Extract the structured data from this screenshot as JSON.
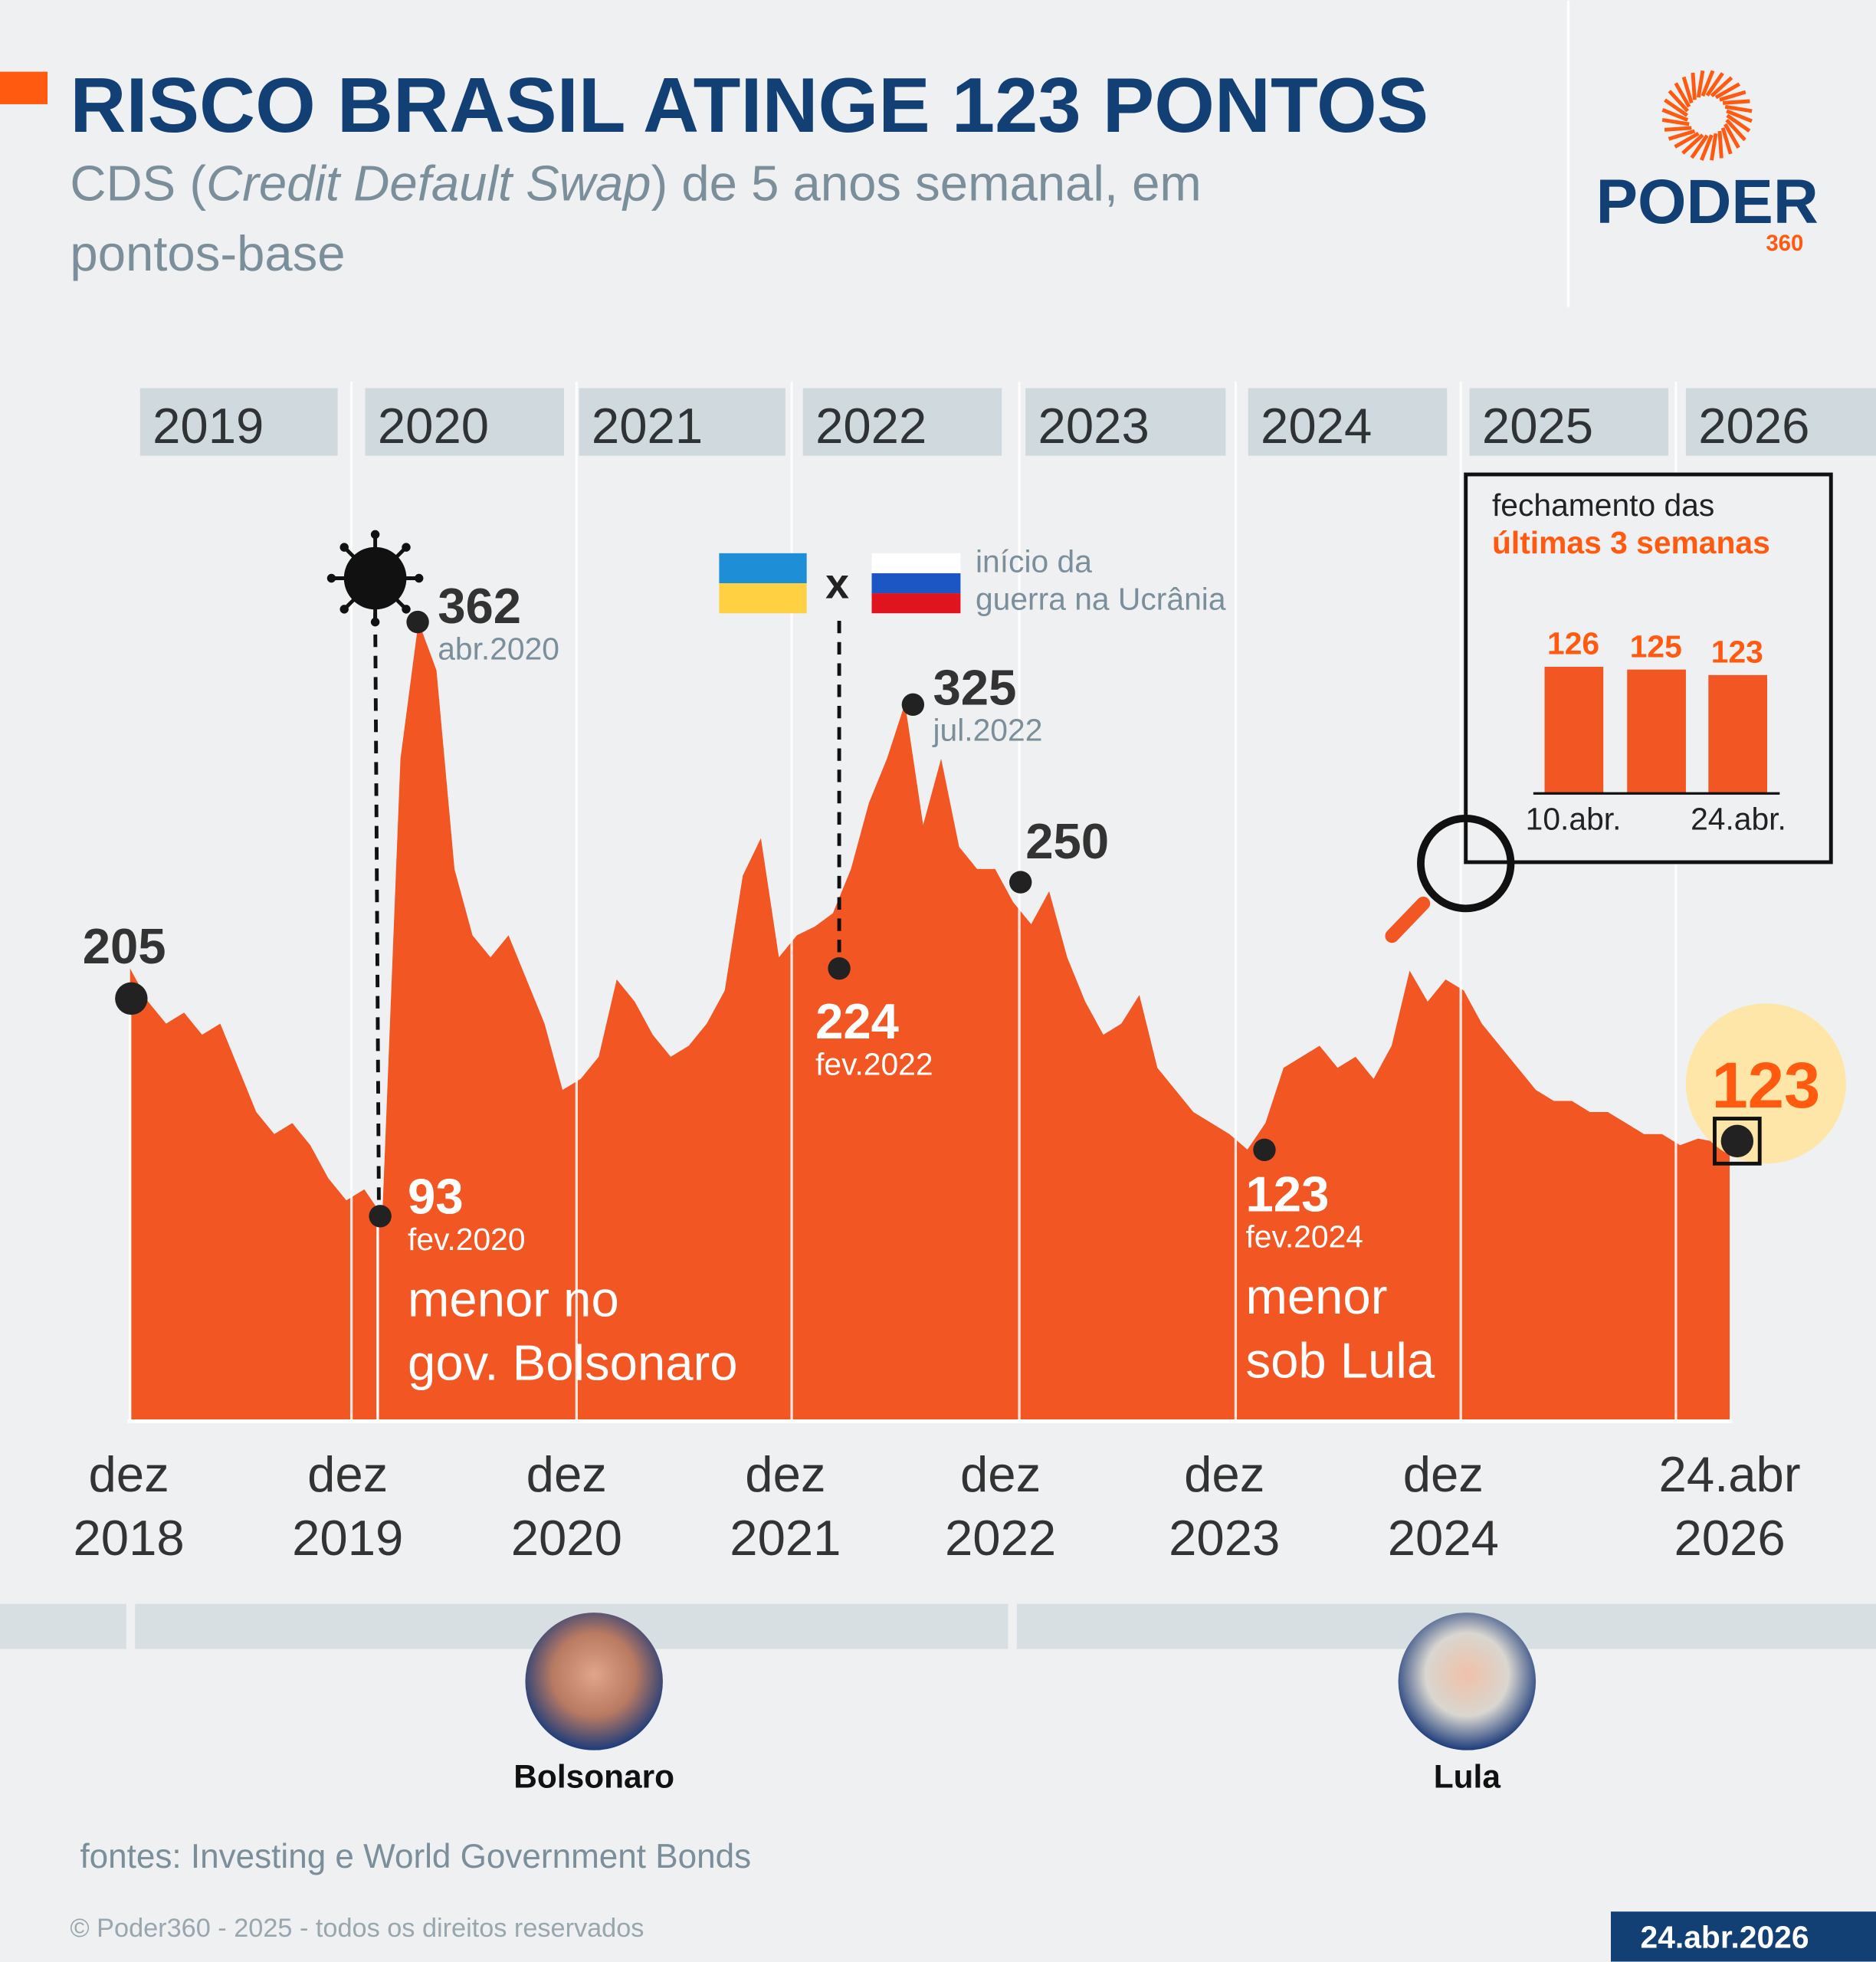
{
  "header": {
    "title": "RISCO BRASIL ATINGE 123 PONTOS",
    "subtitle_prefix": "CDS (",
    "subtitle_italic": "Credit Default Swap",
    "subtitle_suffix": ") de 5 anos semanal, em",
    "subtitle_line2": "pontos-base"
  },
  "logo": {
    "name": "PODER",
    "suffix": "360"
  },
  "colors": {
    "accent": "#f15623",
    "brand_blue": "#123f74",
    "band": "#d0d9de",
    "background": "#eef0f2",
    "highlight": "#fde6a8"
  },
  "chart_data": {
    "type": "area",
    "title": "RISCO BRASIL ATINGE 123 PONTOS",
    "ylabel": "",
    "year_bands": [
      "2019",
      "2020",
      "2021",
      "2022",
      "2023",
      "2024",
      "2025",
      "2026"
    ],
    "x_ticks": [
      {
        "line1": "dez",
        "line2": "2018"
      },
      {
        "line1": "dez",
        "line2": "2019"
      },
      {
        "line1": "dez",
        "line2": "2020"
      },
      {
        "line1": "dez",
        "line2": "2021"
      },
      {
        "line1": "dez",
        "line2": "2022"
      },
      {
        "line1": "dez",
        "line2": "2023"
      },
      {
        "line1": "dez",
        "line2": "2024"
      },
      {
        "line1": "24.abr",
        "line2": "2026"
      }
    ],
    "ylim": [
      0,
      380
    ],
    "series": [
      {
        "x": [
          "2018-12",
          "2019-01",
          "2019-02",
          "2019-03",
          "2019-04",
          "2019-05",
          "2019-06",
          "2019-07",
          "2019-08",
          "2019-09",
          "2019-10",
          "2019-11",
          "2019-12",
          "2020-01",
          "2020-02",
          "2020-03",
          "2020-04",
          "2020-05",
          "2020-06",
          "2020-07",
          "2020-08",
          "2020-09",
          "2020-10",
          "2020-11",
          "2020-12",
          "2021-01",
          "2021-02",
          "2021-03",
          "2021-04",
          "2021-05",
          "2021-06",
          "2021-07",
          "2021-08",
          "2021-09",
          "2021-10",
          "2021-11",
          "2021-12",
          "2022-01",
          "2022-02",
          "2022-03",
          "2022-04",
          "2022-05",
          "2022-06",
          "2022-07",
          "2022-08",
          "2022-09",
          "2022-10",
          "2022-11",
          "2022-12",
          "2023-01",
          "2023-02",
          "2023-03",
          "2023-04",
          "2023-05",
          "2023-06",
          "2023-07",
          "2023-08",
          "2023-09",
          "2023-10",
          "2023-11",
          "2023-12",
          "2024-01",
          "2024-02",
          "2024-03",
          "2024-04",
          "2024-05",
          "2024-06",
          "2024-07",
          "2024-08",
          "2024-09",
          "2024-10",
          "2024-11",
          "2024-12",
          "2025-01",
          "2025-02",
          "2025-03",
          "2025-04",
          "2025-05",
          "2025-06",
          "2025-07",
          "2025-08",
          "2025-09",
          "2025-10",
          "2025-11",
          "2025-12",
          "2026-01",
          "2026-02",
          "2026-03",
          "2026-04-10",
          "2026-04-17",
          "2026-04-24"
        ],
        "values": [
          205,
          190,
          180,
          185,
          175,
          180,
          160,
          140,
          130,
          135,
          125,
          110,
          100,
          105,
          93,
          300,
          362,
          340,
          250,
          220,
          210,
          220,
          200,
          180,
          150,
          155,
          165,
          200,
          190,
          175,
          165,
          170,
          180,
          195,
          247,
          264,
          210,
          220,
          224,
          230,
          250,
          280,
          300,
          325,
          270,
          300,
          260,
          250,
          250,
          235,
          225,
          240,
          210,
          190,
          175,
          180,
          193,
          160,
          150,
          140,
          135,
          130,
          123,
          135,
          160,
          165,
          170,
          160,
          165,
          155,
          170,
          204,
          190,
          200,
          195,
          180,
          170,
          160,
          150,
          145,
          145,
          140,
          140,
          135,
          130,
          130,
          125,
          128,
          126,
          125,
          123
        ]
      }
    ],
    "annotations": [
      {
        "value": "205",
        "date": ""
      },
      {
        "value": "362",
        "date": "abr.2020"
      },
      {
        "value": "93",
        "date": "fev.2020",
        "note1": "menor no",
        "note2": "gov. Bolsonaro"
      },
      {
        "value": "325",
        "date": "jul.2022"
      },
      {
        "value": "224",
        "date": "fev.2022"
      },
      {
        "value": "250",
        "date": ""
      },
      {
        "value": "123",
        "date": "fev.2024",
        "note1": "menor",
        "note2": "sob Lula"
      },
      {
        "value": "123",
        "date": ""
      }
    ],
    "war_note": {
      "line1": "início da",
      "line2": "guerra na Ucrânia",
      "versus": "x"
    },
    "inset": {
      "title1": "fechamento das",
      "title2": "últimas 3 semanas",
      "values": [
        126,
        125,
        123
      ],
      "labels": [
        "126",
        "125",
        "123"
      ],
      "tick_left": "10.abr.",
      "tick_right": "24.abr."
    }
  },
  "presidents": [
    {
      "name": "Bolsonaro"
    },
    {
      "name": "Lula"
    }
  ],
  "footer": {
    "sources": "fontes: Investing e World Government Bonds",
    "copyright": "© Poder360 - 2025 - todos os direitos reservados",
    "date": "24.abr.2026"
  }
}
